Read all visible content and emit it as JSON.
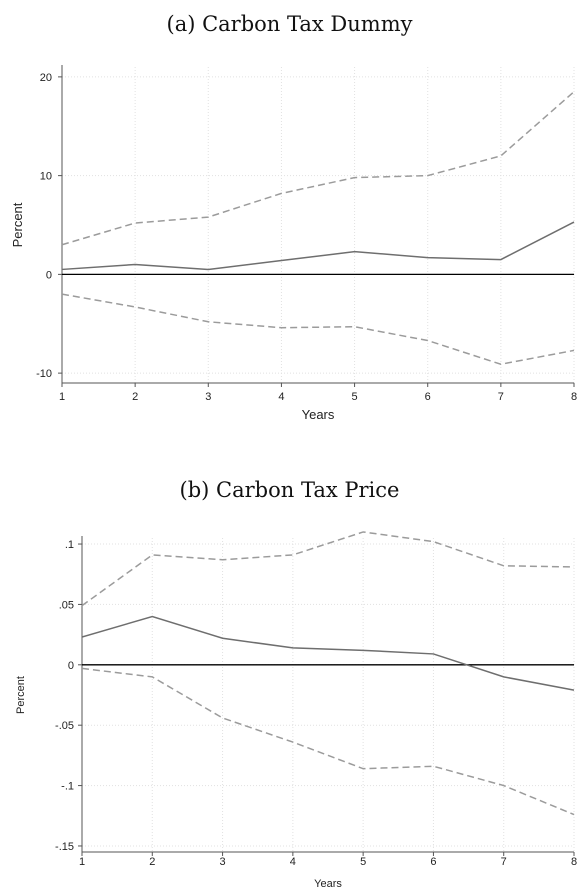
{
  "colors": {
    "estimate": "#6e6e6e",
    "ci": "#9b9b9b",
    "zero_line": "#000000",
    "grid": "#e1e1e1",
    "axis": "#555555"
  },
  "chart_data": [
    {
      "type": "line",
      "title": "(a) Carbon Tax Dummy",
      "xlabel": "Years",
      "ylabel": "Percent",
      "x": [
        1,
        2,
        3,
        4,
        5,
        6,
        7,
        8
      ],
      "xlim": [
        1,
        8
      ],
      "ylim": [
        -11,
        21
      ],
      "yticks": [
        -10,
        0,
        10,
        20
      ],
      "ytick_labels": [
        "-10",
        "0",
        "10",
        "20"
      ],
      "grid": true,
      "zero_line": true,
      "series": [
        {
          "style": "solid",
          "values": [
            0.5,
            1.0,
            0.5,
            1.4,
            2.3,
            1.7,
            1.5,
            5.3
          ]
        },
        {
          "style": "dashed",
          "values": [
            3.0,
            5.2,
            5.8,
            8.2,
            9.8,
            10.0,
            12.0,
            18.5
          ]
        },
        {
          "style": "dashed",
          "values": [
            -2.0,
            -3.3,
            -4.8,
            -5.4,
            -5.3,
            -6.7,
            -9.1,
            -7.7
          ]
        }
      ]
    },
    {
      "type": "line",
      "title": "(b) Carbon Tax Price",
      "xlabel": "Years",
      "ylabel": "Percent",
      "x": [
        1,
        2,
        3,
        4,
        5,
        6,
        7,
        8
      ],
      "xlim": [
        1,
        8
      ],
      "ylim": [
        -0.155,
        0.105
      ],
      "yticks": [
        -0.15,
        -0.1,
        -0.05,
        0,
        0.05,
        0.1
      ],
      "ytick_labels": [
        "-.15",
        "-.1",
        "-.05",
        "0",
        ".05",
        ".1"
      ],
      "grid": true,
      "zero_line": true,
      "series": [
        {
          "style": "solid",
          "values": [
            0.023,
            0.04,
            0.022,
            0.014,
            0.012,
            0.009,
            -0.01,
            -0.021
          ]
        },
        {
          "style": "dashed",
          "values": [
            0.049,
            0.091,
            0.087,
            0.091,
            0.11,
            0.102,
            0.082,
            0.081
          ]
        },
        {
          "style": "dashed",
          "values": [
            -0.003,
            -0.01,
            -0.044,
            -0.064,
            -0.086,
            -0.084,
            -0.1,
            -0.124
          ]
        }
      ]
    }
  ]
}
